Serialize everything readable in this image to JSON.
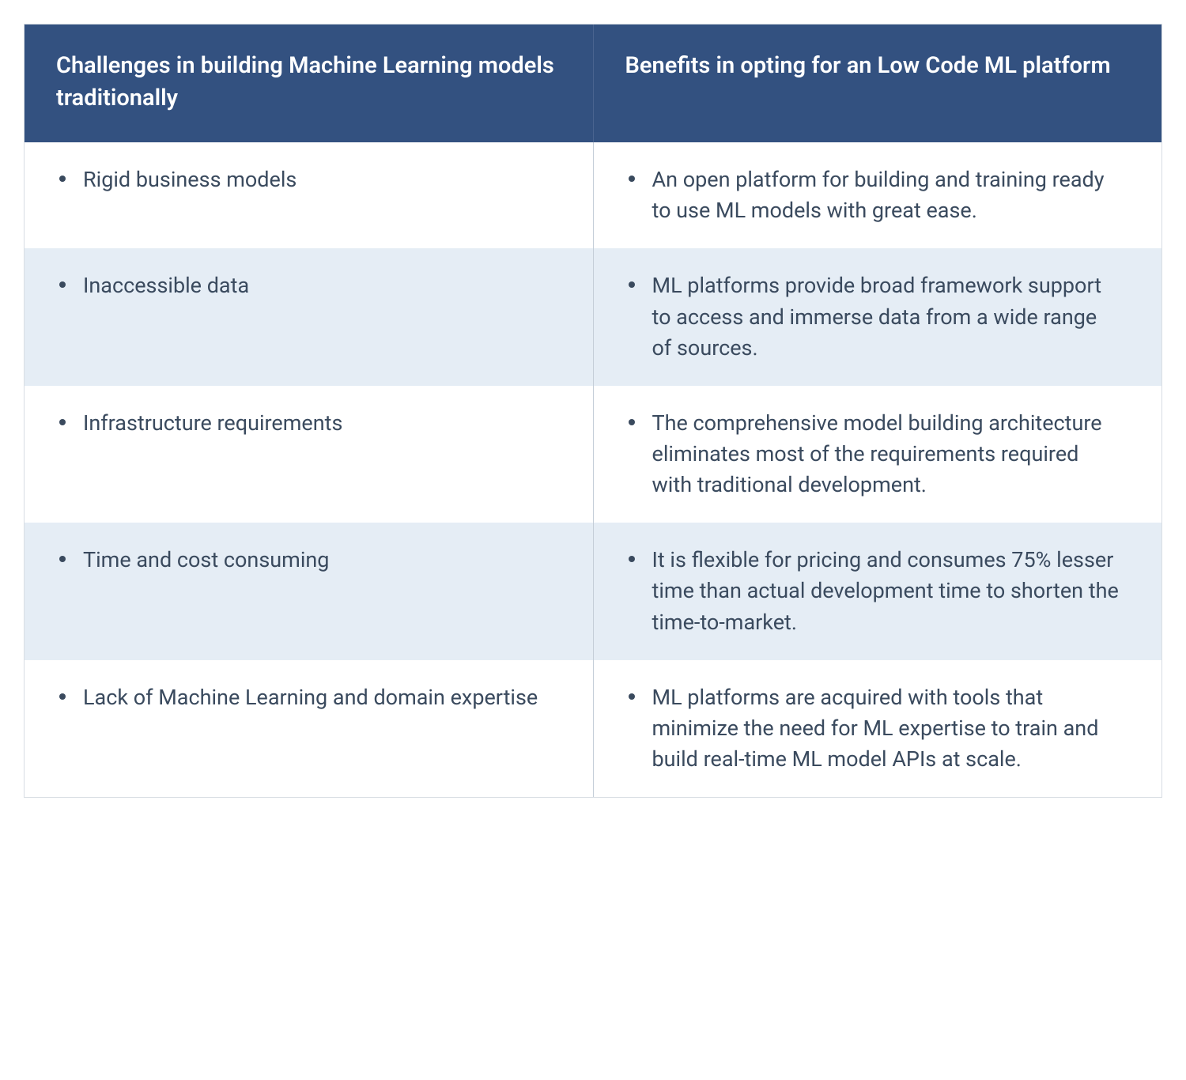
{
  "table": {
    "type": "comparison-table",
    "header_background": "#335180",
    "header_text_color": "#ffffff",
    "row_even_background": "#ffffff",
    "row_odd_background": "#e5edf5",
    "body_text_color": "#3a4a5e",
    "border_color": "#d8dde3",
    "divider_color": "#c5ced8",
    "header_fontsize": 29,
    "body_fontsize": 27,
    "columns": [
      {
        "header": "Challenges in building Machine Learning models traditionally"
      },
      {
        "header": "Benefits in opting for an Low Code ML platform"
      }
    ],
    "rows": [
      {
        "challenge": "Rigid business models",
        "benefit": "An open platform for building and training ready to use ML models with great ease."
      },
      {
        "challenge": "Inaccessible data",
        "benefit": "ML platforms provide broad framework support to access and immerse data from a wide range of sources."
      },
      {
        "challenge": "Infrastructure requirements",
        "benefit": "The comprehensive model building architecture eliminates most of the requirements required with traditional development."
      },
      {
        "challenge": "Time and cost consuming",
        "benefit": "It is flexible for pricing and consumes 75% lesser time than actual development time to shorten the time-to-market."
      },
      {
        "challenge": "Lack of Machine Learning and domain expertise",
        "benefit": "ML platforms are acquired with tools that minimize the need for ML expertise to train and build real-time ML model APIs at scale."
      }
    ]
  }
}
